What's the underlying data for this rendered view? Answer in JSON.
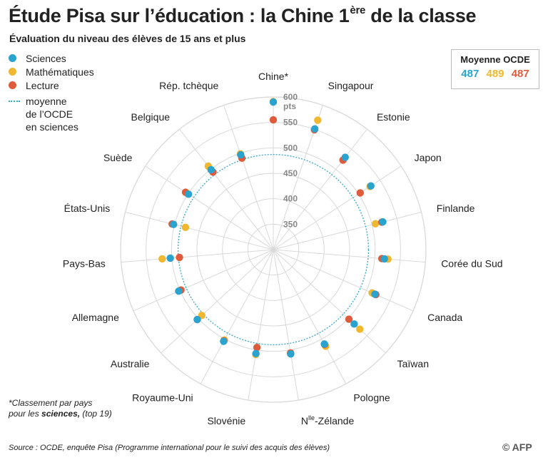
{
  "header": {
    "title": "Étude Pisa sur l’éducation : la Chine 1",
    "title_sup": "ère",
    "title_end": " de la classe",
    "subtitle": "Évaluation du niveau des élèves de 15 ans et plus"
  },
  "legend": {
    "items": [
      {
        "label": "Sciences",
        "color": "#2aa3cf"
      },
      {
        "label": "Mathématiques",
        "color": "#f0b731"
      },
      {
        "label": "Lecture",
        "color": "#de5b3c"
      }
    ],
    "oecd_line_1": "moyenne",
    "oecd_line_2": "de l’OCDE",
    "oecd_line_3": "en sciences"
  },
  "oecd_box": {
    "title": "Moyenne OCDE",
    "sciences": "487",
    "maths": "489",
    "lecture": "487"
  },
  "chart_data": {
    "type": "radial-scatter",
    "rlim": [
      300,
      600
    ],
    "ticks": [
      350,
      400,
      450,
      500,
      550,
      600
    ],
    "tick_unit": "pts",
    "oecd_reference": 487,
    "categories": [
      "Chine*",
      "Singapour",
      "Estonie",
      "Japon",
      "Finlande",
      "Corée du Sud",
      "Canada",
      "Taïwan",
      "Pologne",
      "Nlle-Zélande",
      "Slovénie",
      "Royaume-Uni",
      "Australie",
      "Allemagne",
      "Pays-Bas",
      "États-Unis",
      "Suède",
      "Belgique",
      "Rép. tchèque"
    ],
    "series": [
      {
        "name": "Sciences",
        "color": "#2aa3cf",
        "values": [
          590,
          551,
          530,
          529,
          522,
          519,
          518,
          516,
          511,
          508,
          507,
          505,
          503,
          503,
          503,
          502,
          499,
          499,
          497
        ]
      },
      {
        "name": "Mathématiques",
        "color": "#f0b731",
        "values": [
          591,
          569,
          523,
          527,
          507,
          526,
          512,
          531,
          516,
          506,
          509,
          502,
          491,
          500,
          519,
          478,
          502,
          508,
          499
        ]
      },
      {
        "name": "Lecture",
        "color": "#de5b3c",
        "values": [
          555,
          549,
          523,
          504,
          520,
          514,
          520,
          502,
          512,
          506,
          495,
          504,
          503,
          498,
          485,
          505,
          506,
          493,
          490
        ]
      }
    ]
  },
  "footnote": {
    "line1": "*Classement par pays",
    "line2_pre": "pour les ",
    "line2_bold": "sciences,",
    "line2_post": " (top 19)"
  },
  "source": "Source : OCDE, enquête Pisa (Programme international pour le suivi des acquis des élèves)",
  "credit": "© AFP"
}
